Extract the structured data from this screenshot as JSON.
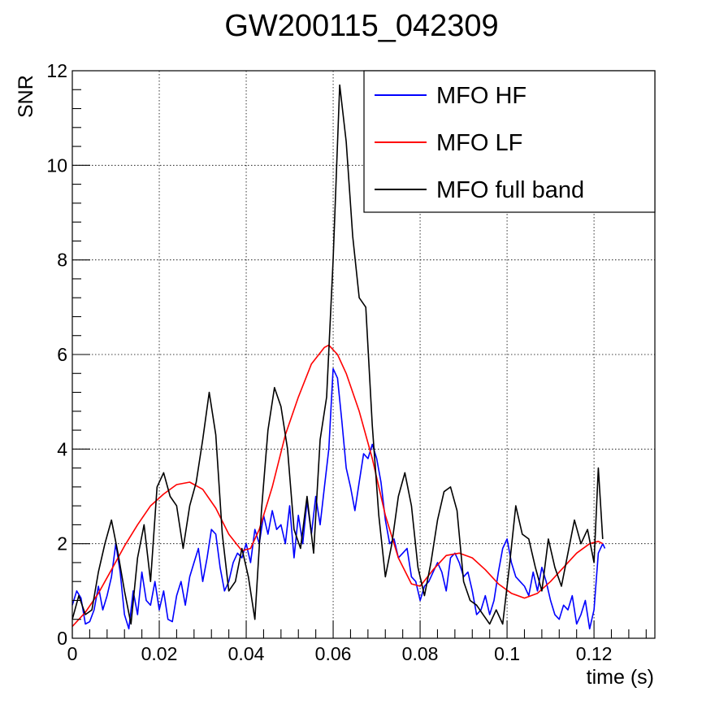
{
  "chart_data": {
    "type": "line",
    "title": "GW200115_042309",
    "xlabel": "time (s)",
    "ylabel": "SNR",
    "xlim": [
      0,
      0.134
    ],
    "ylim": [
      0,
      12
    ],
    "grid": true,
    "legend_position": "top-right",
    "x_ticks": [
      0,
      0.02,
      0.04,
      0.06,
      0.08,
      0.1,
      0.12
    ],
    "x_tick_labels": [
      "0",
      "0.02",
      "0.04",
      "0.06",
      "0.08",
      "0.1",
      "0.12"
    ],
    "y_ticks": [
      0,
      2,
      4,
      6,
      8,
      10,
      12
    ],
    "y_tick_labels": [
      "0",
      "2",
      "4",
      "6",
      "8",
      "10",
      "12"
    ],
    "series": [
      {
        "name": "MFO HF",
        "color": "#0000ff",
        "x": [
          0,
          0.001,
          0.002,
          0.003,
          0.004,
          0.005,
          0.006,
          0.007,
          0.008,
          0.009,
          0.01,
          0.011,
          0.012,
          0.013,
          0.014,
          0.015,
          0.016,
          0.017,
          0.018,
          0.019,
          0.02,
          0.021,
          0.022,
          0.023,
          0.024,
          0.025,
          0.026,
          0.027,
          0.028,
          0.029,
          0.03,
          0.031,
          0.032,
          0.033,
          0.034,
          0.035,
          0.036,
          0.037,
          0.038,
          0.039,
          0.04,
          0.041,
          0.042,
          0.043,
          0.044,
          0.045,
          0.046,
          0.047,
          0.048,
          0.049,
          0.05,
          0.051,
          0.052,
          0.053,
          0.054,
          0.055,
          0.056,
          0.057,
          0.058,
          0.059,
          0.06,
          0.061,
          0.062,
          0.063,
          0.064,
          0.065,
          0.066,
          0.067,
          0.068,
          0.069,
          0.07,
          0.071,
          0.072,
          0.073,
          0.074,
          0.075,
          0.076,
          0.077,
          0.078,
          0.079,
          0.08,
          0.081,
          0.082,
          0.083,
          0.084,
          0.085,
          0.086,
          0.087,
          0.088,
          0.089,
          0.09,
          0.091,
          0.092,
          0.093,
          0.094,
          0.095,
          0.096,
          0.097,
          0.098,
          0.099,
          0.1,
          0.101,
          0.102,
          0.103,
          0.104,
          0.105,
          0.106,
          0.107,
          0.108,
          0.109,
          0.11,
          0.111,
          0.112,
          0.113,
          0.114,
          0.115,
          0.116,
          0.117,
          0.118,
          0.119,
          0.12,
          0.121,
          0.122,
          0.1225
        ],
        "y": [
          0.7,
          1.0,
          0.85,
          0.3,
          0.35,
          0.6,
          1.1,
          0.6,
          0.9,
          1.3,
          2.0,
          1.4,
          0.5,
          0.2,
          1.0,
          0.5,
          1.4,
          0.8,
          0.7,
          1.2,
          0.6,
          1.0,
          0.4,
          0.35,
          0.9,
          1.2,
          0.7,
          1.3,
          1.6,
          1.9,
          1.2,
          1.7,
          2.3,
          2.2,
          1.5,
          1.0,
          1.2,
          1.6,
          1.8,
          1.7,
          2.0,
          1.6,
          2.3,
          2.0,
          2.6,
          2.2,
          2.7,
          2.3,
          2.4,
          2.0,
          2.8,
          1.7,
          2.6,
          2.0,
          2.9,
          2.2,
          3.0,
          2.4,
          3.2,
          4.0,
          5.7,
          5.5,
          4.6,
          3.6,
          3.2,
          2.7,
          3.3,
          3.9,
          3.8,
          4.1,
          3.8,
          3.3,
          2.5,
          2.0,
          2.1,
          1.7,
          1.8,
          1.9,
          1.3,
          1.2,
          0.8,
          1.1,
          1.2,
          1.4,
          1.6,
          1.4,
          1.0,
          1.7,
          1.8,
          1.6,
          1.3,
          1.4,
          1.0,
          0.5,
          0.6,
          0.9,
          0.5,
          0.8,
          1.4,
          1.9,
          2.1,
          1.6,
          1.3,
          1.2,
          1.1,
          0.9,
          1.4,
          1.0,
          1.5,
          1.2,
          0.8,
          0.5,
          0.4,
          0.7,
          0.6,
          0.9,
          0.3,
          0.5,
          0.8,
          0.2,
          0.6,
          1.8,
          2.0,
          1.9
        ]
      },
      {
        "name": "MFO LF",
        "color": "#ff0000",
        "x": [
          0,
          0.003,
          0.006,
          0.009,
          0.012,
          0.015,
          0.018,
          0.021,
          0.024,
          0.027,
          0.03,
          0.033,
          0.036,
          0.039,
          0.041,
          0.043,
          0.046,
          0.049,
          0.052,
          0.055,
          0.058,
          0.059,
          0.061,
          0.063,
          0.066,
          0.069,
          0.072,
          0.075,
          0.078,
          0.08,
          0.083,
          0.086,
          0.089,
          0.092,
          0.095,
          0.098,
          0.101,
          0.104,
          0.107,
          0.11,
          0.113,
          0.116,
          0.119,
          0.121,
          0.122
        ],
        "y": [
          0.25,
          0.55,
          0.95,
          1.45,
          1.95,
          2.4,
          2.8,
          3.05,
          3.25,
          3.3,
          3.15,
          2.75,
          2.2,
          1.85,
          1.9,
          2.3,
          3.2,
          4.3,
          5.1,
          5.8,
          6.15,
          6.2,
          6.0,
          5.6,
          4.8,
          3.8,
          2.6,
          1.7,
          1.15,
          1.1,
          1.45,
          1.75,
          1.8,
          1.7,
          1.45,
          1.15,
          0.95,
          0.85,
          0.95,
          1.2,
          1.5,
          1.8,
          2.0,
          2.05,
          2.0
        ]
      },
      {
        "name": "MFO full band",
        "color": "#000000",
        "x": [
          0,
          0.0015,
          0.003,
          0.0045,
          0.006,
          0.0075,
          0.009,
          0.0105,
          0.012,
          0.0135,
          0.015,
          0.0165,
          0.018,
          0.0195,
          0.021,
          0.0225,
          0.024,
          0.0255,
          0.027,
          0.0285,
          0.03,
          0.0315,
          0.033,
          0.0345,
          0.036,
          0.0375,
          0.039,
          0.0405,
          0.042,
          0.0435,
          0.045,
          0.0465,
          0.048,
          0.0495,
          0.051,
          0.0525,
          0.054,
          0.0555,
          0.057,
          0.0585,
          0.06,
          0.0615,
          0.063,
          0.0645,
          0.066,
          0.0675,
          0.069,
          0.0705,
          0.072,
          0.0735,
          0.075,
          0.0765,
          0.078,
          0.0795,
          0.081,
          0.0825,
          0.084,
          0.0855,
          0.087,
          0.0885,
          0.09,
          0.0915,
          0.093,
          0.0945,
          0.096,
          0.0975,
          0.099,
          0.1005,
          0.102,
          0.1035,
          0.105,
          0.1065,
          0.108,
          0.1095,
          0.111,
          0.1125,
          0.114,
          0.1155,
          0.117,
          0.1185,
          0.12,
          0.121,
          0.122
        ],
        "y": [
          0.4,
          0.9,
          0.5,
          0.6,
          1.4,
          2.0,
          2.5,
          1.8,
          1.0,
          0.3,
          1.7,
          2.4,
          1.2,
          3.2,
          3.5,
          3.0,
          2.8,
          1.9,
          2.8,
          3.3,
          4.2,
          5.2,
          4.3,
          2.2,
          1.0,
          1.2,
          1.9,
          1.3,
          0.4,
          2.7,
          4.4,
          5.3,
          4.9,
          4.0,
          2.3,
          1.9,
          3.0,
          1.8,
          4.2,
          5.1,
          8.0,
          11.7,
          10.5,
          8.5,
          7.2,
          7.0,
          4.5,
          2.6,
          1.3,
          2.0,
          3.0,
          3.5,
          2.8,
          1.5,
          0.9,
          1.6,
          2.5,
          3.1,
          3.2,
          2.7,
          1.2,
          0.8,
          0.7,
          0.5,
          0.3,
          0.6,
          0.3,
          1.5,
          2.8,
          2.2,
          2.1,
          1.5,
          1.0,
          2.1,
          1.5,
          1.1,
          1.8,
          2.5,
          2.0,
          2.3,
          1.6,
          3.6,
          2.1
        ]
      }
    ]
  }
}
